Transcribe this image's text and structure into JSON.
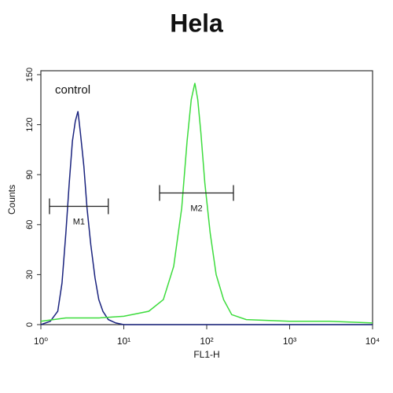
{
  "chart_data": {
    "type": "line",
    "title": "Hela",
    "annotation": "control",
    "xlabel": "FL1-H",
    "ylabel": "Counts",
    "xscale": "log",
    "xlim": [
      1,
      10000
    ],
    "xticks": [
      {
        "value": 1,
        "label": "10⁰"
      },
      {
        "value": 10,
        "label": "10¹"
      },
      {
        "value": 100,
        "label": "10²"
      },
      {
        "value": 1000,
        "label": "10³"
      },
      {
        "value": 10000,
        "label": "10⁴"
      }
    ],
    "ylim": [
      0,
      150
    ],
    "yticks": [
      0,
      30,
      60,
      90,
      120,
      150
    ],
    "series": [
      {
        "color": "#1a237e",
        "x": [
          1,
          1.3,
          1.6,
          1.8,
          2.0,
          2.2,
          2.4,
          2.6,
          2.8,
          3.0,
          3.3,
          3.6,
          4.0,
          4.5,
          5.0,
          5.6,
          6.5,
          8,
          10,
          20,
          50,
          100,
          300,
          1000,
          10000
        ],
        "values": [
          0,
          2,
          8,
          25,
          55,
          85,
          110,
          122,
          128,
          115,
          95,
          70,
          48,
          28,
          15,
          8,
          3,
          1,
          0,
          0,
          0,
          0,
          0,
          0,
          0
        ]
      },
      {
        "color": "#3ddc3d",
        "x": [
          1,
          2,
          5,
          10,
          20,
          30,
          40,
          50,
          58,
          65,
          72,
          78,
          85,
          95,
          110,
          130,
          160,
          200,
          300,
          1000,
          3000,
          10000
        ],
        "values": [
          2,
          4,
          4,
          5,
          8,
          15,
          35,
          70,
          110,
          135,
          145,
          135,
          115,
          85,
          55,
          30,
          15,
          6,
          3,
          2,
          2,
          1
        ]
      }
    ],
    "markers": [
      {
        "label": "M1",
        "range": [
          1.27,
          6.5
        ],
        "y": 71
      },
      {
        "label": "M2",
        "range": [
          27,
          210
        ],
        "y": 79
      }
    ]
  }
}
